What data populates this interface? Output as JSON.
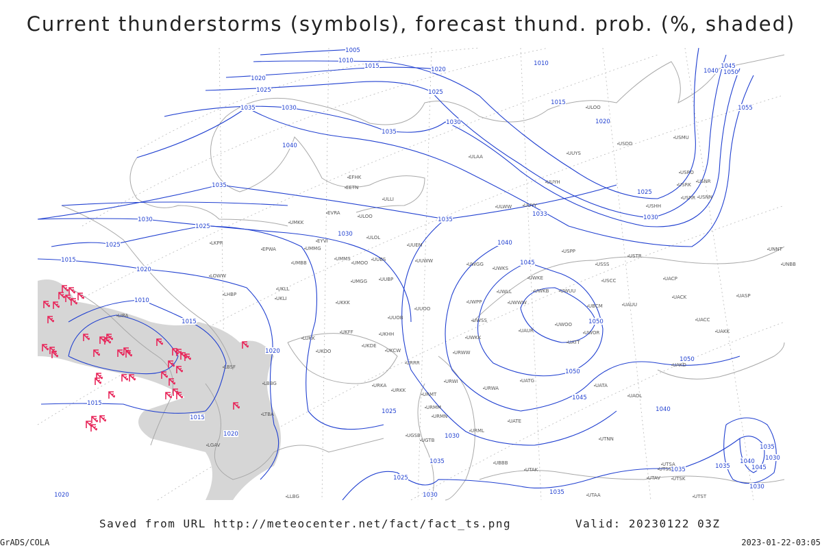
{
  "title": "Current thunderstorms (symbols), forecast thund. prob. (%, shaded)",
  "footer": {
    "saved": "Saved from URL http://meteocenter.net/fact/fact_ts.png",
    "valid": "Valid: 20230122 03Z",
    "credit": "GrADS/COLA",
    "timestamp": "2023-01-22-03:05"
  },
  "isobar_labels": [
    1005,
    1010,
    1015,
    1020,
    1020,
    1025,
    1025,
    1030,
    1035,
    1030,
    1035,
    1040,
    1010,
    1015,
    1020,
    1040,
    1045,
    1050,
    1055,
    1025,
    1030,
    1035,
    1030,
    1025,
    1035,
    1033,
    1030,
    1040,
    1045,
    1025,
    1015,
    1020,
    1010,
    1015,
    1020,
    1050,
    1050,
    1050,
    1045,
    1040,
    1015,
    1015,
    1020,
    1025,
    1030,
    1035,
    1025,
    1030,
    1035,
    1020,
    1035,
    1035,
    1030,
    1040,
    1045,
    1030,
    1035
  ],
  "stations": [
    "ULOO",
    "USDD",
    "UUYS",
    "USMU",
    "ULAA",
    "UUYH",
    "USRO",
    "USRK",
    "USNR",
    "USRR",
    "USNN",
    "ULWW",
    "UUYY",
    "USHH",
    "EFHK",
    "EETN",
    "ULLI",
    "EVRA",
    "ULOO",
    "UMKK",
    "ULOL",
    "UUEM",
    "UMMG",
    "EYVI",
    "EPWA",
    "UMMS",
    "UMOO",
    "UMBB",
    "UUBS",
    "UUWW",
    "UWGG",
    "UWKS",
    "USPP",
    "USSS",
    "USTR",
    "UWKE",
    "UWKB",
    "UWUU",
    "USCC",
    "UACP",
    "UNNT",
    "UNBB",
    "UUBP",
    "UMGG",
    "UKLL",
    "UKLI",
    "LKPR",
    "LOWW",
    "LHBP",
    "UUOO",
    "UWPP",
    "UWLL",
    "UWWW",
    "UBCM",
    "UAUU",
    "UACK",
    "UASP",
    "LIRA",
    "UKKK",
    "UUOB",
    "UWSS",
    "UWOO",
    "UAUR",
    "UWOR",
    "UATT",
    "UACC",
    "UAKK",
    "UKHH",
    "UKFF",
    "UKCW",
    "UWKK",
    "URWW",
    "LUKK",
    "UKOO",
    "UKDE",
    "URRR",
    "UAKD",
    "LBSF",
    "LBBG",
    "URKA",
    "URKK",
    "URWI",
    "UATG",
    "UATA",
    "UAOL",
    "URMT",
    "URMM",
    "URMN",
    "URWA",
    "UATE",
    "URML",
    "UGTB",
    "UGSB",
    "UBBB",
    "UTAK",
    "UTNN",
    "UTSA",
    "UTSS",
    "UTAV",
    "UTSK",
    "UTST",
    "UTAA",
    "LLBG",
    "LGAV",
    "LTBA"
  ]
}
